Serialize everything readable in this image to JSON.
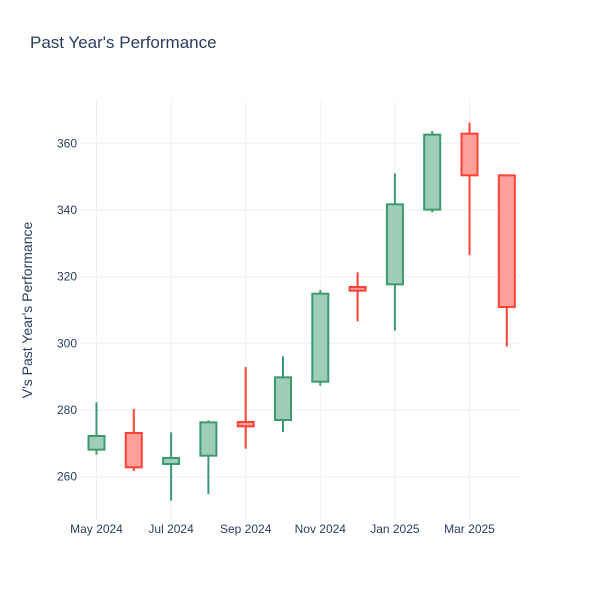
{
  "chart_data": {
    "type": "candlestick",
    "title": "Past Year's Performance",
    "xlabel": "",
    "ylabel": "V's Past Year's Performance",
    "ylim": [
      247,
      373
    ],
    "grid": true,
    "y_ticks": [
      260,
      280,
      300,
      320,
      340,
      360
    ],
    "x_ticks": [
      {
        "label": "May 2024",
        "month_index": 0
      },
      {
        "label": "Jul 2024",
        "month_index": 2
      },
      {
        "label": "Sep 2024",
        "month_index": 4
      },
      {
        "label": "Nov 2024",
        "month_index": 6
      },
      {
        "label": "Jan 2025",
        "month_index": 8
      },
      {
        "label": "Mar 2025",
        "month_index": 10
      }
    ],
    "increasing_color": "#3d9970",
    "increasing_fill": "#9ecdb8",
    "decreasing_color": "#ff4136",
    "decreasing_fill": "#ffa09b",
    "series": [
      {
        "month": "May 2024",
        "month_index": 0,
        "open": 268.1,
        "high": 282.3,
        "low": 266.6,
        "close": 272.2
      },
      {
        "month": "Jun 2024",
        "month_index": 1,
        "open": 273.1,
        "high": 280.3,
        "low": 261.7,
        "close": 262.8
      },
      {
        "month": "Jul 2024",
        "month_index": 2,
        "open": 263.8,
        "high": 273.3,
        "low": 252.8,
        "close": 265.6
      },
      {
        "month": "Aug 2024",
        "month_index": 3,
        "open": 266.3,
        "high": 276.9,
        "low": 254.7,
        "close": 276.3
      },
      {
        "month": "Sep 2024",
        "month_index": 4,
        "open": 276.4,
        "high": 292.9,
        "low": 268.4,
        "close": 275.1
      },
      {
        "month": "Oct 2024",
        "month_index": 5,
        "open": 277.0,
        "high": 296.1,
        "low": 273.4,
        "close": 289.8
      },
      {
        "month": "Nov 2024",
        "month_index": 6,
        "open": 288.5,
        "high": 316.0,
        "low": 287.3,
        "close": 314.9
      },
      {
        "month": "Dec 2024",
        "month_index": 7,
        "open": 316.9,
        "high": 321.3,
        "low": 306.6,
        "close": 315.8
      },
      {
        "month": "Jan 2025",
        "month_index": 8,
        "open": 317.7,
        "high": 351.0,
        "low": 303.8,
        "close": 341.7
      },
      {
        "month": "Feb 2025",
        "month_index": 9,
        "open": 340.1,
        "high": 363.7,
        "low": 339.3,
        "close": 362.6
      },
      {
        "month": "Mar 2025",
        "month_index": 10,
        "open": 362.9,
        "high": 366.2,
        "low": 326.5,
        "close": 350.4
      },
      {
        "month": "Apr 2025",
        "month_index": 11,
        "open": 350.4,
        "high": 350.4,
        "low": 299.0,
        "close": 310.9
      }
    ]
  }
}
